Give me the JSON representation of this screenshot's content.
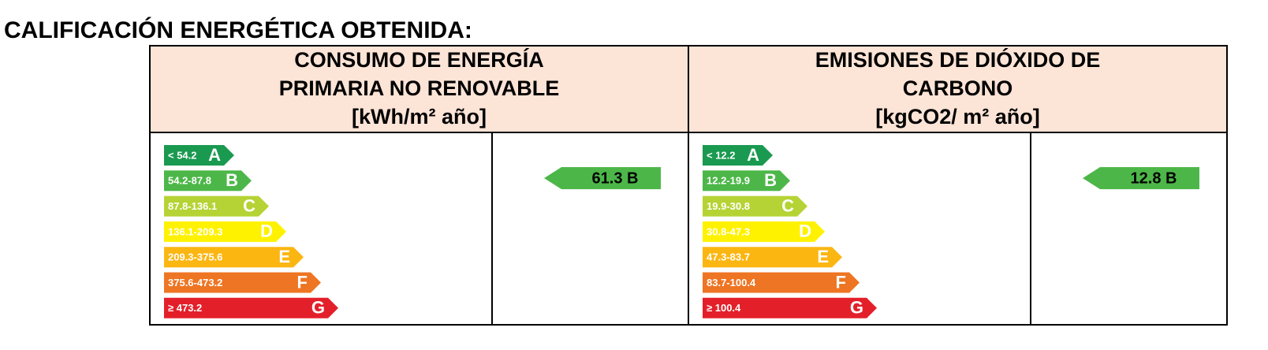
{
  "title": "CALIFICACIÓN ENERGÉTICA OBTENIDA:",
  "panels": [
    {
      "header": [
        "CONSUMO DE ENERGÍA",
        "PRIMARIA NO RENOVABLE",
        "[kWh/m² año]"
      ],
      "ratings": [
        {
          "range": "< 54.2",
          "letter": "A",
          "color": "#1a9a50"
        },
        {
          "range": "54.2-87.8",
          "letter": "B",
          "color": "#4cb748"
        },
        {
          "range": "87.8-136.1",
          "letter": "C",
          "color": "#b5d334"
        },
        {
          "range": "136.1-209.3",
          "letter": "D",
          "color": "#fff200"
        },
        {
          "range": "209.3-375.6",
          "letter": "E",
          "color": "#fbb612"
        },
        {
          "range": "375.6-473.2",
          "letter": "F",
          "color": "#ee7523"
        },
        {
          "range": "≥ 473.2",
          "letter": "G",
          "color": "#e3202a"
        }
      ],
      "result": {
        "label": "61.3 B",
        "color": "#4cb748"
      }
    },
    {
      "header": [
        "EMISIONES DE DIÓXIDO DE",
        "CARBONO",
        "[kgCO2/ m² año]"
      ],
      "ratings": [
        {
          "range": "< 12.2",
          "letter": "A",
          "color": "#1a9a50"
        },
        {
          "range": "12.2-19.9",
          "letter": "B",
          "color": "#4cb748"
        },
        {
          "range": "19.9-30.8",
          "letter": "C",
          "color": "#b5d334"
        },
        {
          "range": "30.8-47.3",
          "letter": "D",
          "color": "#fff200"
        },
        {
          "range": "47.3-83.7",
          "letter": "E",
          "color": "#fbb612"
        },
        {
          "range": "83.7-100.4",
          "letter": "F",
          "color": "#ee7523"
        },
        {
          "range": "≥ 100.4",
          "letter": "G",
          "color": "#e3202a"
        }
      ],
      "result": {
        "label": "12.8 B",
        "color": "#4cb748"
      }
    }
  ]
}
